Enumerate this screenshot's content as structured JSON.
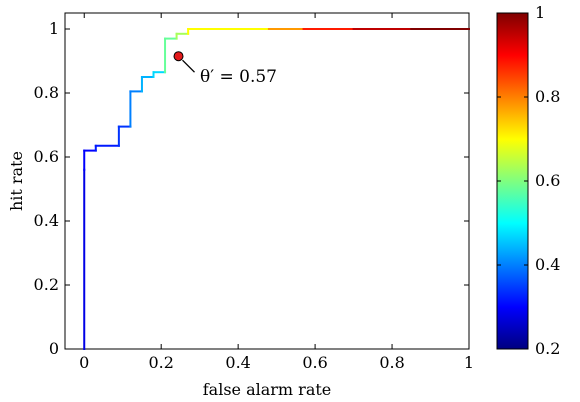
{
  "chart_data": {
    "type": "line",
    "xlabel": "false alarm rate",
    "ylabel": "hit rate",
    "xlim": [
      -0.05,
      1.0
    ],
    "ylim": [
      0,
      1.05
    ],
    "x_ticks": [
      "0",
      "0.2",
      "0.4",
      "0.6",
      "0.8",
      "1"
    ],
    "y_ticks": [
      "0",
      "0.2",
      "0.4",
      "0.6",
      "0.8",
      "1"
    ],
    "grid": false,
    "series": [
      {
        "step": true,
        "points": [
          {
            "x": 0.0,
            "y": 0.0,
            "c": 0.26
          },
          {
            "x": 0.0,
            "y": 0.56,
            "c": 0.28
          },
          {
            "x": 0.03,
            "y": 0.62,
            "c": 0.3
          },
          {
            "x": 0.09,
            "y": 0.635,
            "c": 0.32
          },
          {
            "x": 0.12,
            "y": 0.695,
            "c": 0.34
          },
          {
            "x": 0.15,
            "y": 0.805,
            "c": 0.4
          },
          {
            "x": 0.18,
            "y": 0.85,
            "c": 0.44
          },
          {
            "x": 0.21,
            "y": 0.865,
            "c": 0.47
          },
          {
            "x": 0.24,
            "y": 0.97,
            "c": 0.58
          },
          {
            "x": 0.27,
            "y": 0.985,
            "c": 0.63
          },
          {
            "x": 0.48,
            "y": 1.0,
            "c": 0.7
          },
          {
            "x": 0.57,
            "y": 1.0,
            "c": 0.78
          },
          {
            "x": 0.7,
            "y": 1.0,
            "c": 0.88
          },
          {
            "x": 0.85,
            "y": 1.0,
            "c": 0.95
          },
          {
            "x": 1.0,
            "y": 1.0,
            "c": 1.0
          }
        ]
      }
    ],
    "marker": {
      "x": 0.245,
      "y": 0.915,
      "color": "#e31a1c"
    },
    "annotation": {
      "text": "θ′ = 0.57"
    },
    "colorbar": {
      "colormap": "jet",
      "range": [
        0.2,
        1.0
      ],
      "ticks": [
        "0.2",
        "0.4",
        "0.6",
        "0.8",
        "1"
      ]
    }
  }
}
